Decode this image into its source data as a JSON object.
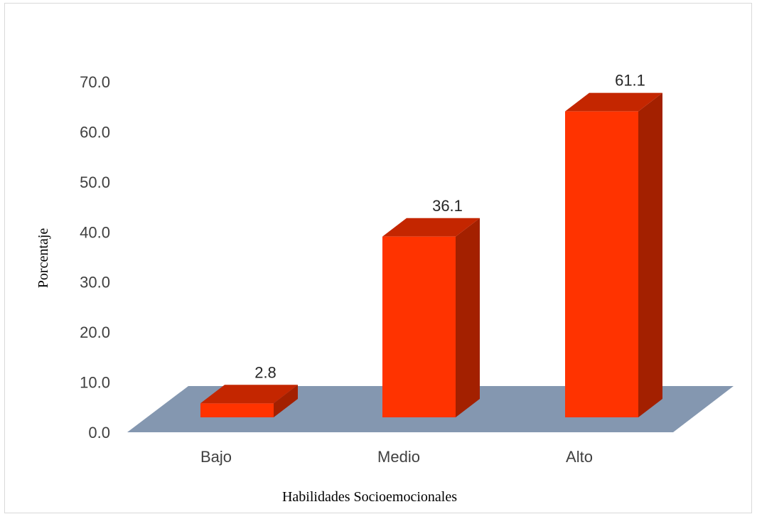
{
  "chart_data": {
    "type": "bar",
    "categories": [
      "Bajo",
      "Medio",
      "Alto"
    ],
    "values": [
      2.8,
      36.1,
      61.1
    ],
    "data_labels": [
      "2.8",
      "36.1",
      "61.1"
    ],
    "xlabel": "Habilidades Socioemocionales",
    "ylabel": "Porcentaje",
    "ylim": [
      0,
      70
    ],
    "yticks": [
      "0.0",
      "10.0",
      "20.0",
      "30.0",
      "40.0",
      "50.0",
      "60.0",
      "70.0"
    ],
    "grid": false,
    "legend": "none",
    "style": "3d-column",
    "colors": {
      "bar_front": "#FF3300",
      "bar_top": "#C42600",
      "bar_side": "#A32000",
      "floor": "#8497B0"
    }
  }
}
